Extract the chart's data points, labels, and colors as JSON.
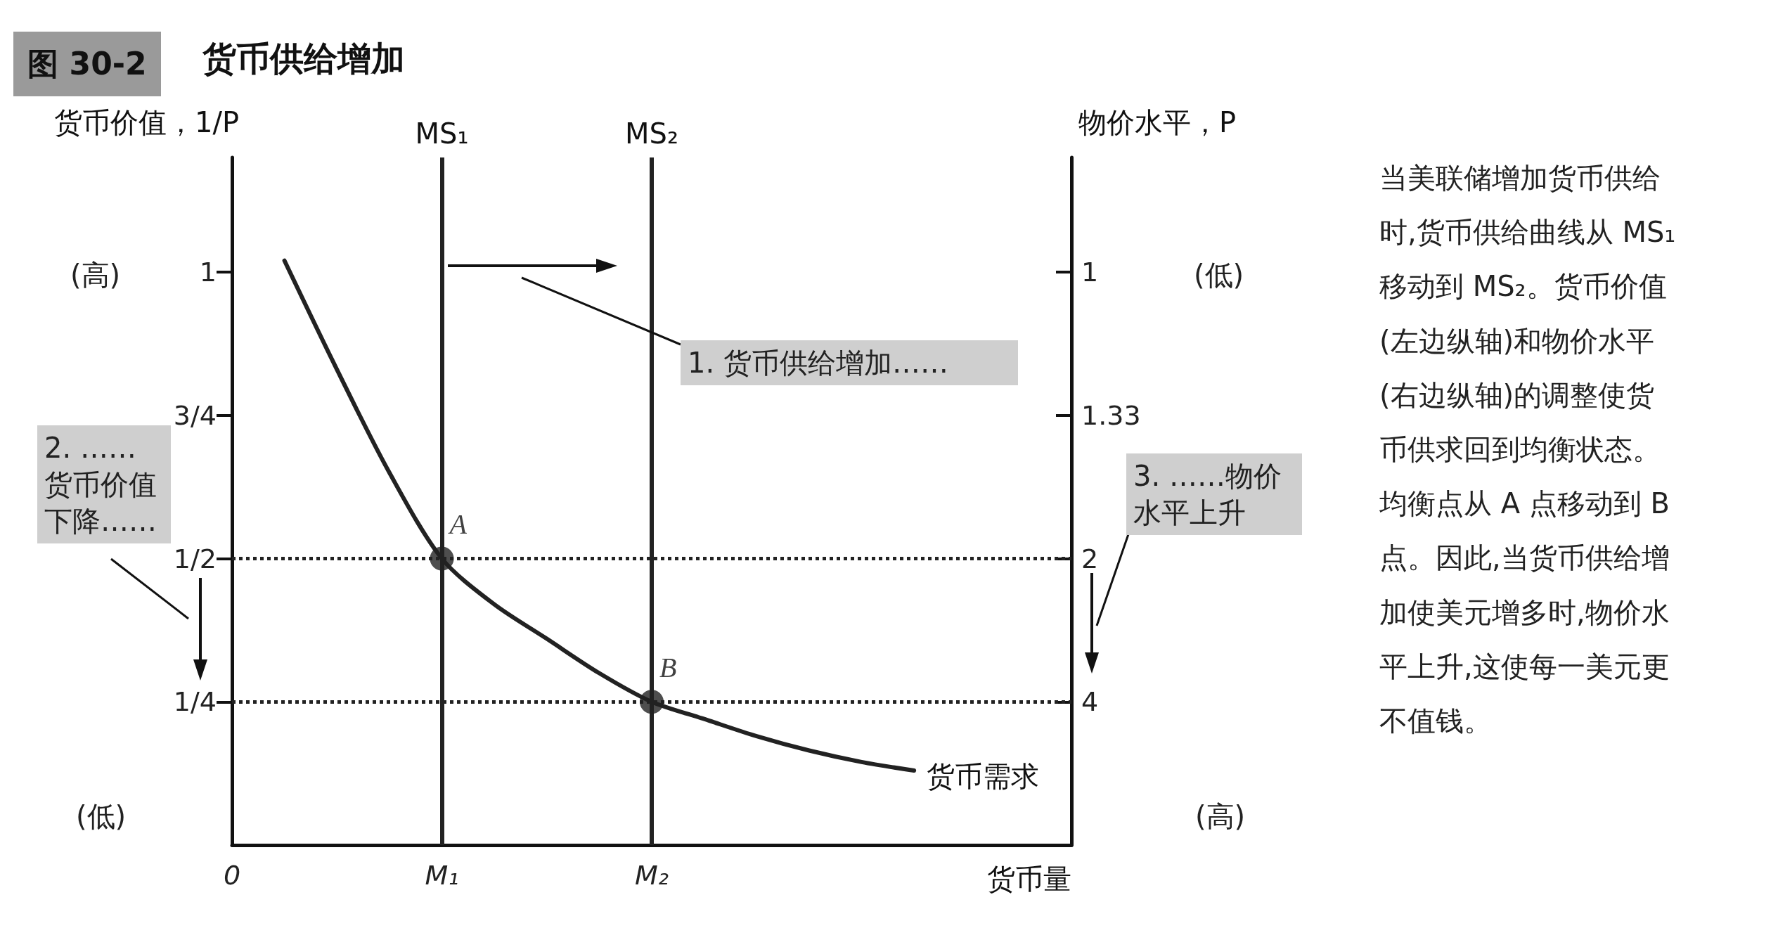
{
  "chart_data": {
    "type": "line",
    "title": "图 30-2",
    "subtitle": "货币供给增加",
    "xlabel": "货币量",
    "ylabel": "货币价值，1/P",
    "y2label": "物价水平，P",
    "categories": [
      "0",
      null,
      null,
      null,
      "M₁",
      null,
      null,
      null,
      "M₂",
      null,
      null,
      null,
      null,
      null,
      null,
      null,
      null
    ],
    "ylim": [
      0,
      1.2
    ],
    "yticks": [
      {
        "value": 0.25,
        "label": "1/4"
      },
      {
        "value": 0.5,
        "label": "1/2"
      },
      {
        "value": 0.75,
        "label": "3/4"
      },
      1
    ],
    "grid": false,
    "legend": false,
    "marker": "none",
    "line_style": "solid",
    "series": [
      {
        "name": "货币需求",
        "color": "#222222",
        "values": [
          null,
          1.02,
          0.83,
          0.65,
          0.5,
          0.42,
          0.36,
          0.3,
          0.25,
          0.22,
          0.19,
          0.165,
          0.145,
          0.13,
          null,
          null,
          null
        ]
      },
      {
        "type": "scatter",
        "marker": "circle",
        "color": "#222222",
        "x": [
          "M₁",
          "M₂"
        ],
        "values": [
          0.5,
          0.25
        ],
        "value_labels": [
          "A",
          "B"
        ]
      }
    ],
    "ref_lines": [
      {
        "axis": "x",
        "value": "M₁",
        "label": "MS₁",
        "line_style": "solid"
      },
      {
        "axis": "x",
        "value": "M₂",
        "label": "MS₂",
        "line_style": "solid"
      },
      {
        "axis": "y",
        "value": 0.5,
        "line_style": "dotted"
      },
      {
        "axis": "y",
        "value": 0.25,
        "line_style": "dotted"
      }
    ],
    "annotations": [
      "1. 货币供给增加……",
      "2. ……货币价值下降……",
      "3. ……物价水平上升",
      "(高)",
      "(低)",
      "(低)",
      "(高)",
      "当美联储增加货币供给时,货币供给曲线从 MS₁ 移动到 MS₂。货币价值(左边纵轴)和物价水平(右边纵轴)的调整使货币供求回到均衡状态。均衡点从 A 点移动到 B 点。因此,当货币供给增加使美元增多时,物价水平上升,这使每一美元更不值钱。",
      "4",
      "2",
      "1.33",
      "1"
    ]
  }
}
